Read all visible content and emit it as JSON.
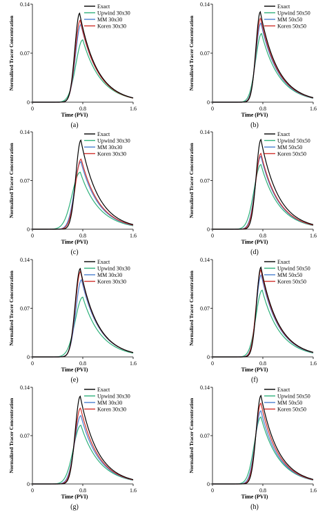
{
  "legend_colors": {
    "Exact": "#000000",
    "Upwind": "#2db07a",
    "MM": "#4a7fd0",
    "Koren": "#d0302c"
  },
  "chart_data": [
    {
      "type": "line",
      "caption": "(a)",
      "xlabel": "Time (PVI)",
      "ylabel": "Normalized Tracer Concentration",
      "xticks": [
        "0",
        "0.8",
        "1.6"
      ],
      "yticks": [
        "0",
        "0.07",
        "0.14"
      ],
      "xlim": [
        0,
        1.6
      ],
      "ylim": [
        0,
        0.14
      ],
      "legend_position": "top-right",
      "series": [
        {
          "name": "Exact",
          "key": "Exact",
          "peak_x": 0.75,
          "peak_y": 0.127,
          "rise": 0.075,
          "decay": 0.28
        },
        {
          "name": "Upwind 30x30",
          "key": "Upwind",
          "peak_x": 0.8,
          "peak_y": 0.089,
          "rise": 0.11,
          "decay": 0.29
        },
        {
          "name": "MM 30x30",
          "key": "MM",
          "peak_x": 0.77,
          "peak_y": 0.111,
          "rise": 0.085,
          "decay": 0.285
        },
        {
          "name": "Koren 30x30",
          "key": "Koren",
          "peak_x": 0.76,
          "peak_y": 0.117,
          "rise": 0.08,
          "decay": 0.28
        }
      ]
    },
    {
      "type": "line",
      "caption": "(b)",
      "xlabel": "Time (PVI)",
      "ylabel": "Normalized Tracer Concentration",
      "xticks": [
        "0",
        "0.8",
        "1.6"
      ],
      "yticks": [
        "0",
        "0.07",
        "0.14"
      ],
      "xlim": [
        0,
        1.6
      ],
      "ylim": [
        0,
        0.14
      ],
      "legend_position": "top-right",
      "series": [
        {
          "name": "Exact",
          "key": "Exact",
          "peak_x": 0.76,
          "peak_y": 0.129,
          "rise": 0.07,
          "decay": 0.28
        },
        {
          "name": "Upwind 50x50",
          "key": "Upwind",
          "peak_x": 0.78,
          "peak_y": 0.098,
          "rise": 0.095,
          "decay": 0.285
        },
        {
          "name": "MM 50x50",
          "key": "MM",
          "peak_x": 0.77,
          "peak_y": 0.113,
          "rise": 0.08,
          "decay": 0.28
        },
        {
          "name": "Koren 50x50",
          "key": "Koren",
          "peak_x": 0.765,
          "peak_y": 0.12,
          "rise": 0.075,
          "decay": 0.28
        }
      ]
    },
    {
      "type": "line",
      "caption": "(c)",
      "xlabel": "Time (PVI)",
      "ylabel": "Normalized Tracer Concentration",
      "xticks": [
        "0",
        "0.8",
        "1.6"
      ],
      "yticks": [
        "0",
        "0.07",
        "0.14"
      ],
      "xlim": [
        0,
        1.6
      ],
      "ylim": [
        0,
        0.14
      ],
      "legend_position": "top-right",
      "series": [
        {
          "name": "Exact",
          "key": "Exact",
          "peak_x": 0.77,
          "peak_y": 0.128,
          "rise": 0.08,
          "decay": 0.28
        },
        {
          "name": "Upwind 30x30",
          "key": "Upwind",
          "peak_x": 0.76,
          "peak_y": 0.082,
          "rise": 0.13,
          "decay": 0.3
        },
        {
          "name": "MM 30x30",
          "key": "MM",
          "peak_x": 0.77,
          "peak_y": 0.097,
          "rise": 0.1,
          "decay": 0.29
        },
        {
          "name": "Koren 30x30",
          "key": "Koren",
          "peak_x": 0.775,
          "peak_y": 0.101,
          "rise": 0.095,
          "decay": 0.29
        }
      ]
    },
    {
      "type": "line",
      "caption": "(d)",
      "xlabel": "Time (PVI)",
      "ylabel": "Normalized Tracer Concentration",
      "xticks": [
        "0",
        "0.8",
        "1.6"
      ],
      "yticks": [
        "0",
        "0.07",
        "0.14"
      ],
      "xlim": [
        0,
        1.6
      ],
      "ylim": [
        0,
        0.14
      ],
      "legend_position": "top-right",
      "series": [
        {
          "name": "Exact",
          "key": "Exact",
          "peak_x": 0.77,
          "peak_y": 0.129,
          "rise": 0.075,
          "decay": 0.28
        },
        {
          "name": "Upwind 50x50",
          "key": "Upwind",
          "peak_x": 0.77,
          "peak_y": 0.093,
          "rise": 0.11,
          "decay": 0.29
        },
        {
          "name": "MM 50x50",
          "key": "MM",
          "peak_x": 0.77,
          "peak_y": 0.105,
          "rise": 0.09,
          "decay": 0.285
        },
        {
          "name": "Koren 50x50",
          "key": "Koren",
          "peak_x": 0.77,
          "peak_y": 0.109,
          "rise": 0.085,
          "decay": 0.285
        }
      ]
    },
    {
      "type": "line",
      "caption": "(e)",
      "xlabel": "Time (PVI)",
      "ylabel": "Normalized Tracer Concentration",
      "xticks": [
        "0",
        "0.8",
        "1.6"
      ],
      "yticks": [
        "0",
        "0.07",
        "0.14"
      ],
      "xlim": [
        0,
        1.6
      ],
      "ylim": [
        0,
        0.14
      ],
      "legend_position": "top-right",
      "series": [
        {
          "name": "Exact",
          "key": "Exact",
          "peak_x": 0.76,
          "peak_y": 0.127,
          "rise": 0.08,
          "decay": 0.28
        },
        {
          "name": "Upwind 30x30",
          "key": "Upwind",
          "peak_x": 0.8,
          "peak_y": 0.086,
          "rise": 0.12,
          "decay": 0.29
        },
        {
          "name": "MM 30x30",
          "key": "MM",
          "peak_x": 0.78,
          "peak_y": 0.111,
          "rise": 0.09,
          "decay": 0.285
        },
        {
          "name": "Koren 30x30",
          "key": "Koren",
          "peak_x": 0.765,
          "peak_y": 0.123,
          "rise": 0.082,
          "decay": 0.28
        }
      ]
    },
    {
      "type": "line",
      "caption": "(f)",
      "xlabel": "Time (PVI)",
      "ylabel": "Normalized Tracer Concentration",
      "xticks": [
        "0",
        "0.8",
        "1.6"
      ],
      "yticks": [
        "0",
        "0.07",
        "0.14"
      ],
      "xlim": [
        0,
        1.6
      ],
      "ylim": [
        0,
        0.14
      ],
      "legend_position": "top-right",
      "series": [
        {
          "name": "Exact",
          "key": "Exact",
          "peak_x": 0.77,
          "peak_y": 0.129,
          "rise": 0.07,
          "decay": 0.28
        },
        {
          "name": "Upwind 50x50",
          "key": "Upwind",
          "peak_x": 0.79,
          "peak_y": 0.096,
          "rise": 0.1,
          "decay": 0.285
        },
        {
          "name": "MM 50x50",
          "key": "MM",
          "peak_x": 0.775,
          "peak_y": 0.118,
          "rise": 0.08,
          "decay": 0.28
        },
        {
          "name": "Koren 50x50",
          "key": "Koren",
          "peak_x": 0.77,
          "peak_y": 0.125,
          "rise": 0.075,
          "decay": 0.28
        }
      ]
    },
    {
      "type": "line",
      "caption": "(g)",
      "xlabel": "Time (PVI)",
      "ylabel": "Normalized Tracer Concentration",
      "xticks": [
        "0",
        "0.8",
        "1.6"
      ],
      "yticks": [
        "0",
        "0.07",
        "0.14"
      ],
      "xlim": [
        0,
        1.6
      ],
      "ylim": [
        0,
        0.14
      ],
      "legend_position": "top-right",
      "series": [
        {
          "name": "Exact",
          "key": "Exact",
          "peak_x": 0.76,
          "peak_y": 0.127,
          "rise": 0.08,
          "decay": 0.28
        },
        {
          "name": "Upwind 30x30",
          "key": "Upwind",
          "peak_x": 0.77,
          "peak_y": 0.085,
          "rise": 0.12,
          "decay": 0.3
        },
        {
          "name": "MM 30x30",
          "key": "MM",
          "peak_x": 0.77,
          "peak_y": 0.099,
          "rise": 0.1,
          "decay": 0.29
        },
        {
          "name": "Koren 30x30",
          "key": "Koren",
          "peak_x": 0.765,
          "peak_y": 0.11,
          "rise": 0.09,
          "decay": 0.285
        }
      ]
    },
    {
      "type": "line",
      "caption": "(h)",
      "xlabel": "Time (PVI)",
      "ylabel": "Normalized Tracer Concentration",
      "xticks": [
        "0",
        "0.8",
        "1.6"
      ],
      "yticks": [
        "0",
        "0.07",
        "0.14"
      ],
      "xlim": [
        0,
        1.6
      ],
      "ylim": [
        0,
        0.14
      ],
      "legend_position": "top-right",
      "series": [
        {
          "name": "Exact",
          "key": "Exact",
          "peak_x": 0.77,
          "peak_y": 0.128,
          "rise": 0.075,
          "decay": 0.28
        },
        {
          "name": "Upwind 50x50",
          "key": "Upwind",
          "peak_x": 0.77,
          "peak_y": 0.097,
          "rise": 0.105,
          "decay": 0.29
        },
        {
          "name": "MM 50x50",
          "key": "MM",
          "peak_x": 0.77,
          "peak_y": 0.106,
          "rise": 0.09,
          "decay": 0.285
        },
        {
          "name": "Koren 50x50",
          "key": "Koren",
          "peak_x": 0.77,
          "peak_y": 0.117,
          "rise": 0.082,
          "decay": 0.28
        }
      ]
    }
  ]
}
